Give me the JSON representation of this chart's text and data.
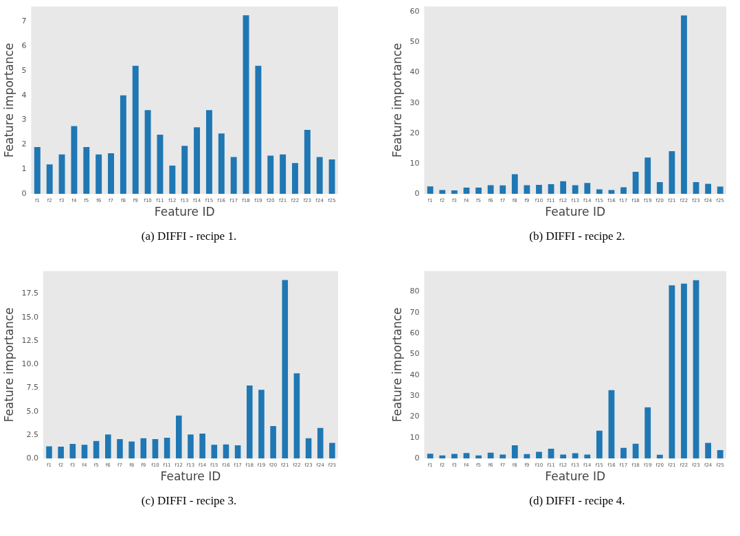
{
  "chart_data": [
    {
      "type": "bar",
      "xlabel": "Feature ID",
      "ylabel": "Feature importance",
      "annotations": [
        "(a) DIFFI - recipe 1."
      ],
      "categories": [
        "f1",
        "f2",
        "f3",
        "f4",
        "f5",
        "f6",
        "f7",
        "f8",
        "f9",
        "f10",
        "f11",
        "f12",
        "f13",
        "f14",
        "f15",
        "f16",
        "f17",
        "f18",
        "f19",
        "f20",
        "f21",
        "f22",
        "f23",
        "f24",
        "f25"
      ],
      "color": "#1f77b4",
      "values": [
        1.9,
        1.2,
        1.6,
        2.75,
        1.9,
        1.6,
        1.65,
        4.0,
        5.2,
        3.4,
        2.4,
        1.15,
        1.95,
        2.7,
        3.4,
        2.45,
        1.5,
        7.25,
        5.2,
        1.55,
        1.6,
        1.25,
        2.6,
        1.5,
        1.4
      ],
      "ylim": [
        0,
        7.6
      ],
      "yticks": [
        0,
        1,
        2,
        3,
        4,
        5,
        6,
        7
      ],
      "grid": false,
      "legend": false
    },
    {
      "type": "bar",
      "xlabel": "Feature ID",
      "ylabel": "Feature importance",
      "annotations": [
        "(b) DIFFI - recipe 2."
      ],
      "categories": [
        "f1",
        "f2",
        "f3",
        "f4",
        "f5",
        "f6",
        "f7",
        "f8",
        "f9",
        "f10",
        "f11",
        "f12",
        "f13",
        "f14",
        "f15",
        "f16",
        "f17",
        "f18",
        "f19",
        "f20",
        "f21",
        "f22",
        "f23",
        "f24",
        "f25"
      ],
      "color": "#1f77b4",
      "values": [
        2.5,
        1.3,
        1.2,
        2.1,
        2.1,
        2.9,
        2.8,
        6.5,
        2.9,
        3.0,
        3.2,
        4.2,
        2.9,
        3.6,
        1.5,
        1.3,
        2.2,
        7.3,
        12.0,
        3.9,
        14.1,
        58.8,
        3.9,
        3.3,
        2.4
      ],
      "ylim": [
        0,
        61.7
      ],
      "yticks": [
        0,
        10,
        20,
        30,
        40,
        50,
        60
      ],
      "grid": false,
      "legend": false
    },
    {
      "type": "bar",
      "xlabel": "Feature ID",
      "ylabel": "Feature importance",
      "annotations": [
        "(c) DIFFI - recipe 3."
      ],
      "categories": [
        "f1",
        "f2",
        "f3",
        "f4",
        "f5",
        "f6",
        "f7",
        "f8",
        "f9",
        "f10",
        "f11",
        "f12",
        "f13",
        "f14",
        "f15",
        "f16",
        "f17",
        "f18",
        "f19",
        "f20",
        "f21",
        "f22",
        "f23",
        "f24",
        "f25"
      ],
      "color": "#1f77b4",
      "values": [
        1.3,
        1.25,
        1.55,
        1.45,
        1.85,
        2.55,
        2.05,
        1.8,
        2.15,
        2.05,
        2.2,
        4.55,
        2.55,
        2.65,
        1.45,
        1.5,
        1.4,
        7.75,
        7.3,
        3.45,
        18.95,
        9.05,
        2.15,
        3.25,
        1.65
      ],
      "ylim": [
        0,
        19.9
      ],
      "yticks": [
        {
          "value": 0,
          "label": "0.0"
        },
        2.5,
        {
          "value": 5,
          "label": "5.0"
        },
        7.5,
        {
          "value": 10,
          "label": "10.0"
        },
        12.5,
        {
          "value": 15,
          "label": "15.0"
        },
        17.5
      ],
      "grid": false,
      "legend": false
    },
    {
      "type": "bar",
      "xlabel": "Feature ID",
      "ylabel": "Feature importance",
      "annotations": [
        "(d) DIFFI - recipe 4."
      ],
      "categories": [
        "f1",
        "f2",
        "f3",
        "f4",
        "f5",
        "f6",
        "f7",
        "f8",
        "f9",
        "f10",
        "f11",
        "f12",
        "f13",
        "f14",
        "f15",
        "f16",
        "f17",
        "f18",
        "f19",
        "f20",
        "f21",
        "f22",
        "f23",
        "f24",
        "f25"
      ],
      "color": "#1f77b4",
      "values": [
        2.3,
        1.5,
        2.2,
        2.6,
        1.5,
        2.8,
        1.9,
        6.3,
        2.1,
        3.2,
        4.7,
        1.9,
        2.5,
        1.9,
        13.3,
        32.8,
        5.1,
        7.1,
        24.5,
        1.8,
        83.0,
        83.8,
        85.5,
        7.5,
        4.0
      ],
      "ylim": [
        0,
        89.8
      ],
      "yticks": [
        0,
        10,
        20,
        30,
        40,
        50,
        60,
        70,
        80
      ],
      "grid": false,
      "legend": false
    }
  ]
}
